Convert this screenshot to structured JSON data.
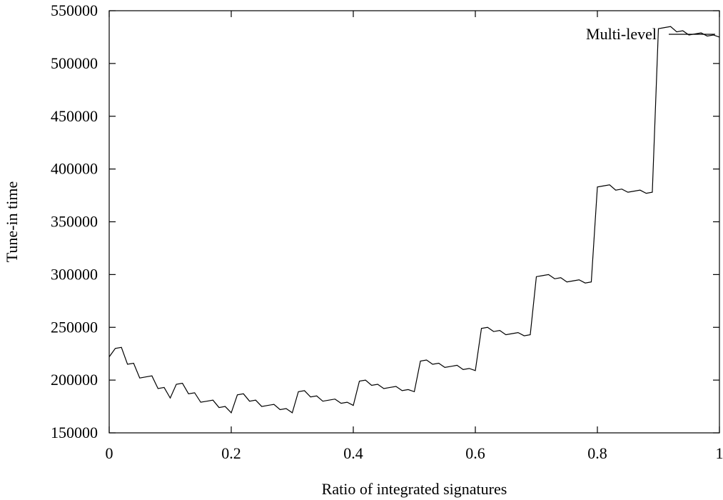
{
  "chart_data": {
    "type": "line",
    "xlabel": "Ratio of integrated signatures",
    "ylabel": "Tune-in time",
    "xlim": [
      0,
      1
    ],
    "ylim": [
      150000,
      550000
    ],
    "x_ticks": [
      0,
      0.2,
      0.4,
      0.6,
      0.8,
      1
    ],
    "x_tick_labels": [
      "0",
      "0.2",
      "0.4",
      "0.6",
      "0.8",
      "1"
    ],
    "y_ticks": [
      150000,
      200000,
      250000,
      300000,
      350000,
      400000,
      450000,
      500000,
      550000
    ],
    "y_tick_labels": [
      "150000",
      "200000",
      "250000",
      "300000",
      "350000",
      "400000",
      "450000",
      "500000",
      "550000"
    ],
    "legend_position": "top-right",
    "grid": false,
    "series": [
      {
        "name": "Multi-level",
        "x": [
          0,
          0.01,
          0.02,
          0.03,
          0.04,
          0.05,
          0.06,
          0.07,
          0.08,
          0.09,
          0.1,
          0.11,
          0.12,
          0.13,
          0.14,
          0.15,
          0.16,
          0.17,
          0.18,
          0.19,
          0.2,
          0.21,
          0.22,
          0.23,
          0.24,
          0.25,
          0.26,
          0.27,
          0.28,
          0.29,
          0.3,
          0.31,
          0.32,
          0.33,
          0.34,
          0.35,
          0.36,
          0.37,
          0.38,
          0.39,
          0.4,
          0.41,
          0.42,
          0.43,
          0.44,
          0.45,
          0.46,
          0.47,
          0.48,
          0.49,
          0.5,
          0.51,
          0.52,
          0.53,
          0.54,
          0.55,
          0.56,
          0.57,
          0.58,
          0.59,
          0.6,
          0.61,
          0.62,
          0.63,
          0.64,
          0.65,
          0.66,
          0.67,
          0.68,
          0.69,
          0.7,
          0.71,
          0.72,
          0.73,
          0.74,
          0.75,
          0.76,
          0.77,
          0.78,
          0.79,
          0.8,
          0.81,
          0.82,
          0.83,
          0.84,
          0.85,
          0.86,
          0.87,
          0.88,
          0.89,
          0.9,
          0.91,
          0.92,
          0.93,
          0.94,
          0.95,
          0.96,
          0.97,
          0.98,
          0.99,
          1.0
        ],
        "y": [
          222000,
          230000,
          231000,
          215000,
          216000,
          202000,
          203000,
          204000,
          192000,
          193000,
          183000,
          196000,
          197000,
          187000,
          188000,
          179000,
          180000,
          181000,
          174000,
          175000,
          169000,
          186000,
          187000,
          180000,
          181000,
          175000,
          176000,
          177000,
          172000,
          173000,
          169000,
          189000,
          190000,
          184000,
          185000,
          180000,
          181000,
          182000,
          178000,
          179000,
          176000,
          199000,
          200000,
          195000,
          196000,
          192000,
          193000,
          194000,
          190000,
          191000,
          189000,
          218000,
          219000,
          215000,
          216000,
          212000,
          213000,
          214000,
          210000,
          211000,
          209000,
          249000,
          250000,
          246000,
          247000,
          243000,
          244000,
          245000,
          242000,
          243000,
          298000,
          299000,
          300000,
          296000,
          297000,
          293000,
          294000,
          295000,
          292000,
          293000,
          383000,
          384000,
          385000,
          380000,
          381000,
          378000,
          379000,
          380000,
          377000,
          378000,
          533000,
          534000,
          535000,
          530000,
          531000,
          527000,
          528000,
          529000,
          526000,
          527000,
          525000
        ]
      }
    ]
  }
}
